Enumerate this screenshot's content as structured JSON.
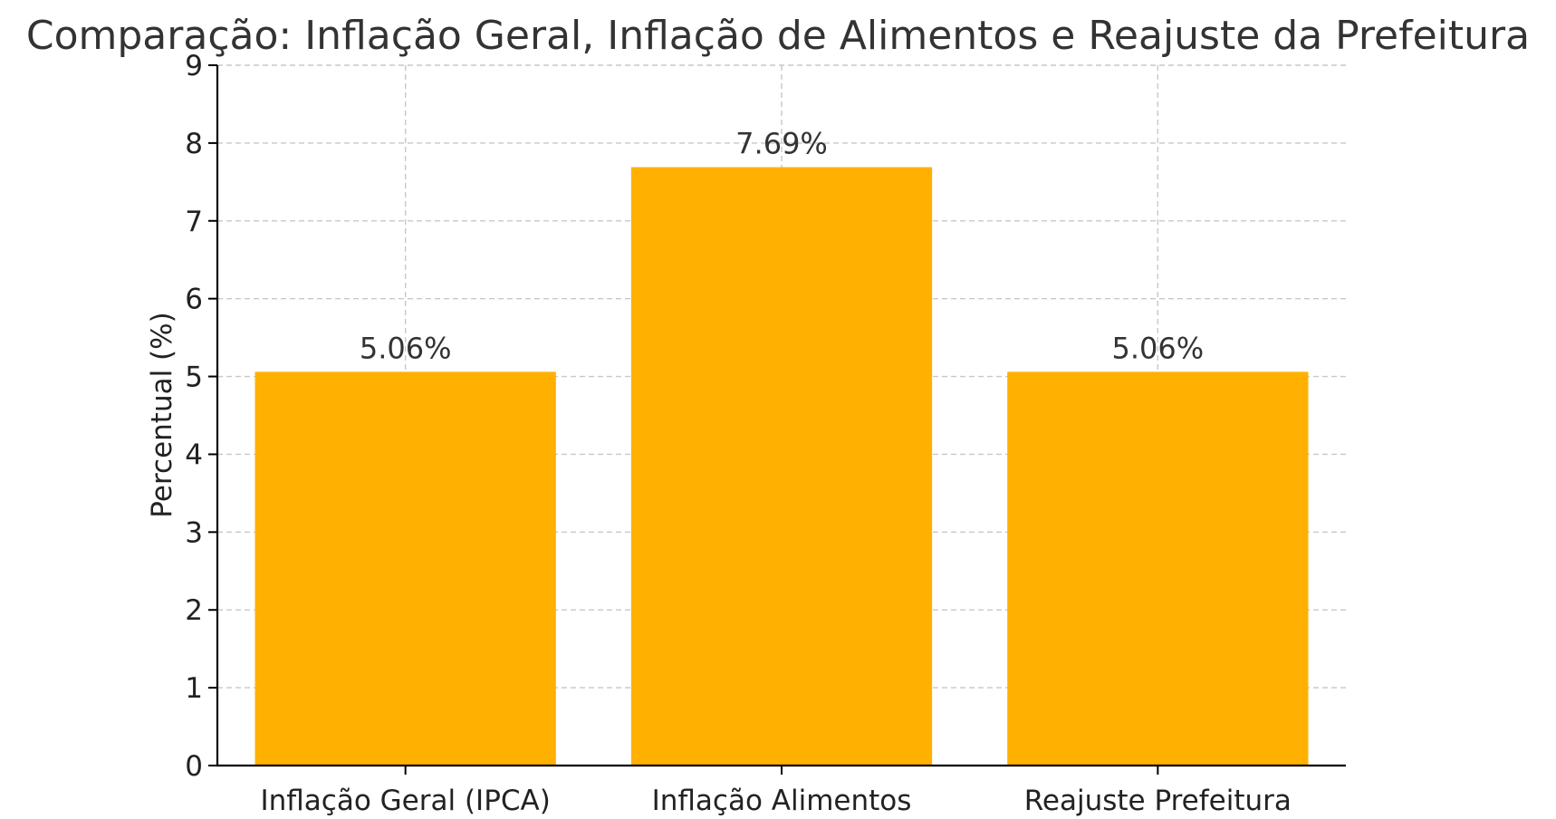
{
  "chart_data": {
    "type": "bar",
    "title": "Comparação: Inflação Geral, Inflação de Alimentos e Reajuste da Prefeitura",
    "xlabel": "",
    "ylabel": "Percentual (%)",
    "categories": [
      "Inflação Geral (IPCA)",
      "Inflação Alimentos",
      "Reajuste Prefeitura"
    ],
    "values": [
      5.06,
      7.69,
      5.06
    ],
    "data_labels": [
      "5.06%",
      "7.69%",
      "5.06%"
    ],
    "ylim": [
      0,
      9
    ],
    "yticks": [
      0,
      1,
      2,
      3,
      4,
      5,
      6,
      7,
      8,
      9
    ],
    "bar_color": "#FFB000",
    "grid": true
  }
}
